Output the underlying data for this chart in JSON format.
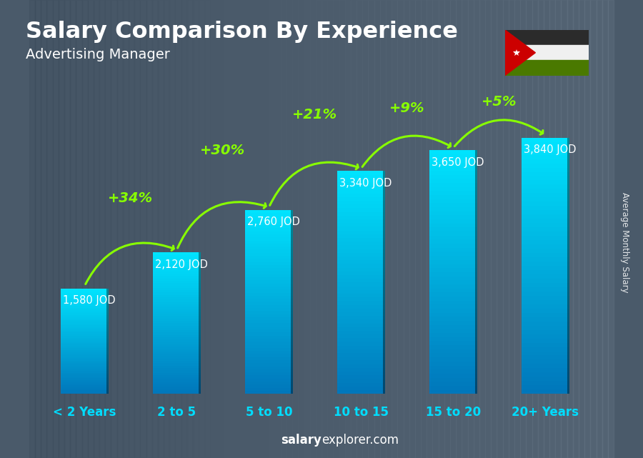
{
  "title": "Salary Comparison By Experience",
  "subtitle": "Advertising Manager",
  "categories": [
    "< 2 Years",
    "2 to 5",
    "5 to 10",
    "10 to 15",
    "15 to 20",
    "20+ Years"
  ],
  "values": [
    1580,
    2120,
    2760,
    3340,
    3650,
    3840
  ],
  "value_labels": [
    "1,580 JOD",
    "2,120 JOD",
    "2,760 JOD",
    "3,340 JOD",
    "3,650 JOD",
    "3,840 JOD"
  ],
  "pct_changes": [
    "+34%",
    "+30%",
    "+21%",
    "+9%",
    "+5%"
  ],
  "bar_color_top": "#00e5ff",
  "bar_color_bottom": "#0077bb",
  "background_color": "#4a5a6a",
  "title_color": "#ffffff",
  "subtitle_color": "#ffffff",
  "tick_color": "#00ddff",
  "label_color": "#ffffff",
  "pct_color": "#88ff00",
  "arrow_color": "#88ff00",
  "footer_salary": "salary",
  "footer_rest": "explorer.com",
  "ylabel": "Average Monthly Salary",
  "ylim": [
    0,
    4600
  ],
  "figsize": [
    9.0,
    6.41
  ],
  "dpi": 100,
  "flag_bg": "#5a6a7a",
  "flag_black": "#2b2b2b",
  "flag_white": "#f0f0f0",
  "flag_green": "#4a7900",
  "flag_red": "#cc0000"
}
